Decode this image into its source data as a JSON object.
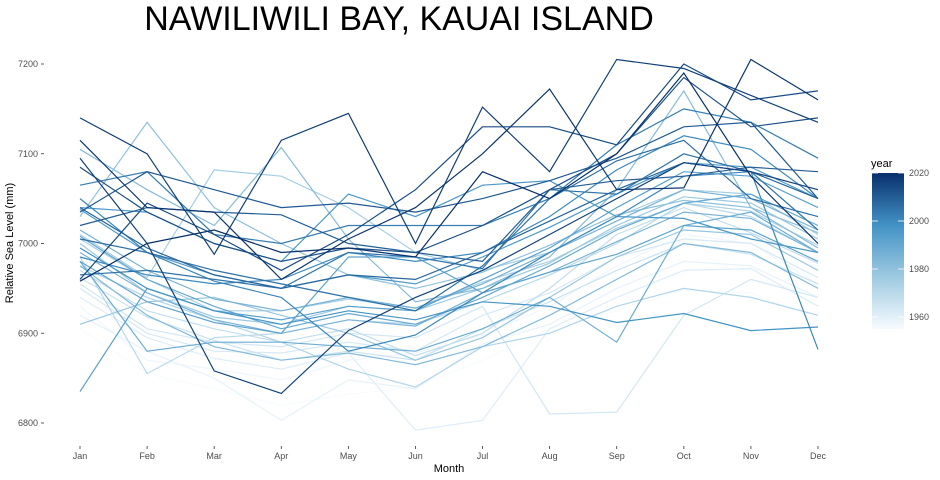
{
  "chart_data": {
    "type": "line",
    "title": "NAWILIWILI BAY, KAUAI ISLAND",
    "xlabel": "Month",
    "ylabel": "Relative Sea Level (mm)",
    "categories": [
      "Jan",
      "Feb",
      "Mar",
      "Apr",
      "May",
      "Jun",
      "Jul",
      "Aug",
      "Sep",
      "Oct",
      "Nov",
      "Dec"
    ],
    "y_ticks": [
      6800,
      6900,
      7000,
      7100,
      7200
    ],
    "ylim": [
      6780,
      7212
    ],
    "grid": false,
    "legend": {
      "title": "year",
      "position": "right",
      "ticks": [
        1960,
        1980,
        2000,
        2020
      ],
      "range": [
        1955,
        2020
      ],
      "colors": [
        "#f7fbff",
        "#9ecae1",
        "#4292c6",
        "#08306b"
      ]
    },
    "series": [
      {
        "year": 1955,
        "values": [
          6905,
          6855,
          6838,
          6820,
          6832,
          6840,
          6870,
          6905,
          6925,
          6948,
          6945,
          6915
        ]
      },
      {
        "year": 1957,
        "values": [
          6930,
          6870,
          6860,
          6848,
          6870,
          6878,
          6898,
          6930,
          6975,
          7010,
          7000,
          6955
        ]
      },
      {
        "year": 1959,
        "values": [
          6920,
          6880,
          6850,
          6803,
          6848,
          6838,
          6888,
          6910,
          6950,
          6980,
          6975,
          6940
        ]
      },
      {
        "year": 1961,
        "values": [
          6940,
          6895,
          6872,
          6860,
          6878,
          6792,
          6803,
          6905,
          6940,
          6970,
          6972,
          6930
        ]
      },
      {
        "year": 1963,
        "values": [
          6950,
          6900,
          6880,
          6878,
          6890,
          6880,
          6920,
          6945,
          6985,
          7005,
          7000,
          6962
        ]
      },
      {
        "year": 1964,
        "values": [
          6955,
          6905,
          6890,
          6885,
          6900,
          6895,
          6930,
          6810,
          6812,
          6920,
          6960,
          6940
        ]
      },
      {
        "year": 1966,
        "values": [
          6962,
          6918,
          6892,
          6870,
          6880,
          6870,
          6905,
          6935,
          6970,
          7000,
          6988,
          6955
        ]
      },
      {
        "year": 1968,
        "values": [
          6970,
          6925,
          6905,
          6890,
          6905,
          6875,
          6900,
          6950,
          7010,
          7040,
          7012,
          6978
        ]
      },
      {
        "year": 1970,
        "values": [
          6985,
          6855,
          6895,
          6900,
          6915,
          6910,
          6935,
          6965,
          7000,
          7045,
          7030,
          6990
        ]
      },
      {
        "year": 1972,
        "values": [
          6975,
          6940,
          6915,
          6890,
          6860,
          6840,
          6885,
          6900,
          6930,
          6950,
          6940,
          6920
        ]
      },
      {
        "year": 1974,
        "values": [
          7005,
          6960,
          6925,
          6925,
          6938,
          6928,
          6957,
          6980,
          7017,
          7045,
          7036,
          6998
        ]
      },
      {
        "year": 1975,
        "values": [
          7010,
          6962,
          7082,
          7075,
          7040,
          6990,
          6970,
          6990,
          7030,
          7060,
          7055,
          7010
        ]
      },
      {
        "year": 1977,
        "values": [
          7000,
          6945,
          6918,
          6910,
          6930,
          6925,
          6950,
          6978,
          7020,
          7052,
          7045,
          7005
        ]
      },
      {
        "year": 1978,
        "values": [
          6910,
          6935,
          6940,
          6920,
          6900,
          6870,
          6895,
          6940,
          6985,
          7015,
          7010,
          6970
        ]
      },
      {
        "year": 1980,
        "values": [
          7030,
          7135,
          7040,
          7000,
          6965,
          6950,
          6968,
          6998,
          7032,
          7048,
          7040,
          7012
        ]
      },
      {
        "year": 1982,
        "values": [
          7105,
          7060,
          7020,
          7107,
          7005,
          6935,
          6950,
          6985,
          7060,
          7170,
          7040,
          6995
        ]
      },
      {
        "year": 1983,
        "values": [
          6975,
          6920,
          6885,
          6870,
          6878,
          6865,
          6885,
          6920,
          6960,
          7000,
          6990,
          6950
        ]
      },
      {
        "year": 1985,
        "values": [
          6990,
          6945,
          6915,
          6900,
          6915,
          6908,
          6945,
          6968,
          7002,
          7035,
          7028,
          6990
        ]
      },
      {
        "year": 1986,
        "values": [
          7015,
          6970,
          6938,
          6925,
          6940,
          6928,
          6955,
          6990,
          7025,
          7060,
          7050,
          7015
        ]
      },
      {
        "year": 1988,
        "values": [
          6980,
          6880,
          6890,
          6890,
          6885,
          6880,
          6905,
          6940,
          6890,
          7020,
          7035,
          6990
        ]
      },
      {
        "year": 1990,
        "values": [
          7008,
          6960,
          6930,
          6905,
          6922,
          6910,
          6940,
          6975,
          7015,
          7045,
          7055,
          7020
        ]
      },
      {
        "year": 1991,
        "values": [
          6980,
          6935,
          6912,
          6900,
          6985,
          6985,
          6945,
          6968,
          6988,
          7020,
          7015,
          6980
        ]
      },
      {
        "year": 1993,
        "values": [
          6835,
          6950,
          6925,
          6915,
          6930,
          6925,
          6960,
          6995,
          7040,
          7080,
          7075,
          7040
        ]
      },
      {
        "year": 1995,
        "values": [
          7038,
          6990,
          6965,
          6950,
          6965,
          6955,
          6985,
          7018,
          7055,
          7090,
          7085,
          7050
        ]
      },
      {
        "year": 1996,
        "values": [
          7040,
          7035,
          7000,
          6980,
          7055,
          7030,
          7065,
          7070,
          7030,
          7028,
          7005,
          6990
        ]
      },
      {
        "year": 1998,
        "values": [
          6995,
          6950,
          6925,
          6910,
          6925,
          6915,
          6935,
          6930,
          6912,
          6922,
          6903,
          6907
        ]
      },
      {
        "year": 2000,
        "values": [
          6985,
          6965,
          6955,
          6960,
          6990,
          6980,
          6990,
          7030,
          7082,
          7120,
          7105,
          7050
        ]
      },
      {
        "year": 2001,
        "values": [
          7050,
          6990,
          6958,
          6940,
          6880,
          6898,
          6945,
          6990,
          7030,
          7075,
          7080,
          6882
        ]
      },
      {
        "year": 2003,
        "values": [
          7065,
          7080,
          7010,
          7000,
          7020,
          7020,
          7020,
          7050,
          7110,
          7150,
          7135,
          7095
        ]
      },
      {
        "year": 2005,
        "values": [
          6965,
          6970,
          6960,
          6950,
          6990,
          6985,
          6972,
          7060,
          7055,
          7100,
          7080,
          7015
        ]
      },
      {
        "year": 2006,
        "values": [
          7005,
          6990,
          6970,
          6955,
          6940,
          6925,
          6975,
          7050,
          7092,
          7115,
          7050,
          7030
        ]
      },
      {
        "year": 2008,
        "values": [
          7040,
          6995,
          6965,
          6950,
          6965,
          6960,
          6990,
          7025,
          7060,
          7090,
          7080,
          7050
        ]
      },
      {
        "year": 2010,
        "values": [
          7020,
          7040,
          7035,
          7032,
          7000,
          6990,
          6980,
          7060,
          7070,
          7075,
          7085,
          7080
        ]
      },
      {
        "year": 2011,
        "values": [
          7035,
          7080,
          7060,
          7040,
          7045,
          7035,
          7050,
          7070,
          7095,
          7130,
          7135,
          7050
        ]
      },
      {
        "year": 2013,
        "values": [
          7085,
          7035,
          7000,
          6980,
          6995,
          6990,
          7020,
          7060,
          7100,
          7185,
          7130,
          7140
        ]
      },
      {
        "year": 2014,
        "values": [
          6960,
          7045,
          7010,
          6970,
          7010,
          7060,
          7130,
          7130,
          7110,
          7200,
          7160,
          7170
        ]
      },
      {
        "year": 2016,
        "values": [
          7095,
          7000,
          6858,
          6833,
          6903,
          6940,
          6970,
          7010,
          7050,
          7090,
          7080,
          7060
        ]
      },
      {
        "year": 2017,
        "values": [
          7140,
          7100,
          6988,
          7115,
          7145,
          7000,
          7152,
          7080,
          7205,
          7195,
          7165,
          7135
        ]
      },
      {
        "year": 2019,
        "values": [
          7115,
          7040,
          7035,
          6960,
          7005,
          7040,
          7100,
          7172,
          7060,
          7062,
          7205,
          7160
        ]
      },
      {
        "year": 2020,
        "values": [
          6958,
          7000,
          7015,
          6990,
          6995,
          6985,
          7080,
          7050,
          7100,
          7190,
          7075,
          7000
        ]
      }
    ]
  }
}
